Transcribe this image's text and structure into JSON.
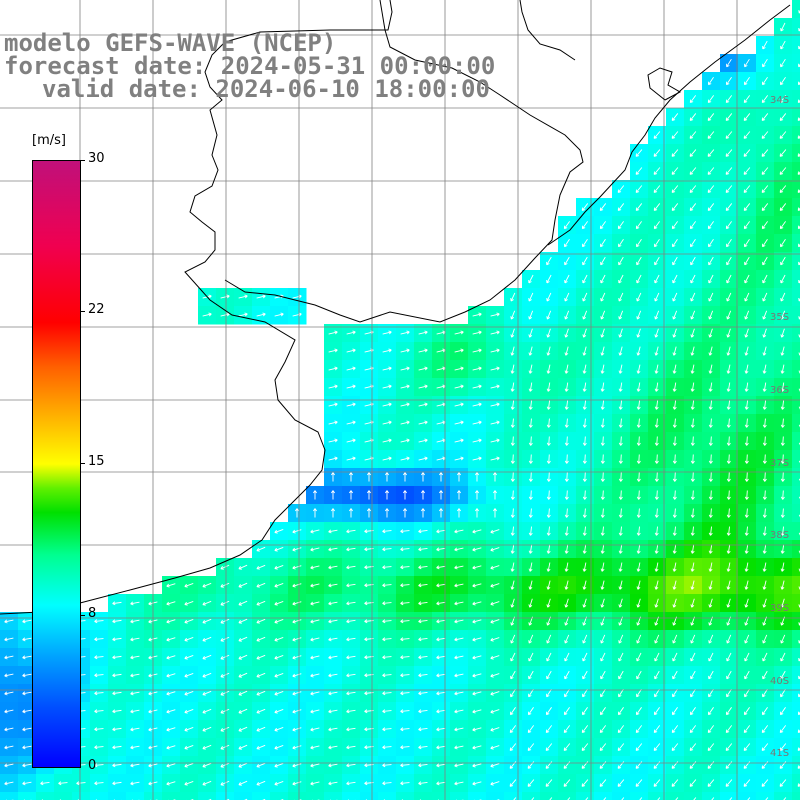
{
  "title": {
    "line1": "modelo GEFS-WAVE (NCEP)",
    "line2": "forecast date: 2024-05-31 00:00:00",
    "line3": "valid date: 2024-06-10 18:00:00"
  },
  "colorbar": {
    "unit": "[m/s]",
    "ticks": [
      "30",
      "22",
      "15",
      "8",
      "0"
    ],
    "tick_values": [
      30,
      22,
      15,
      8,
      0
    ],
    "min": 0,
    "max": 30
  },
  "lat_labels": [
    "34S",
    "35S",
    "36S",
    "37S",
    "38S",
    "39S",
    "40S",
    "41S"
  ],
  "colors": {
    "land": "#ffffff",
    "coast": "#000000",
    "grid": "#808080",
    "arrows": "#ffffff"
  }
}
